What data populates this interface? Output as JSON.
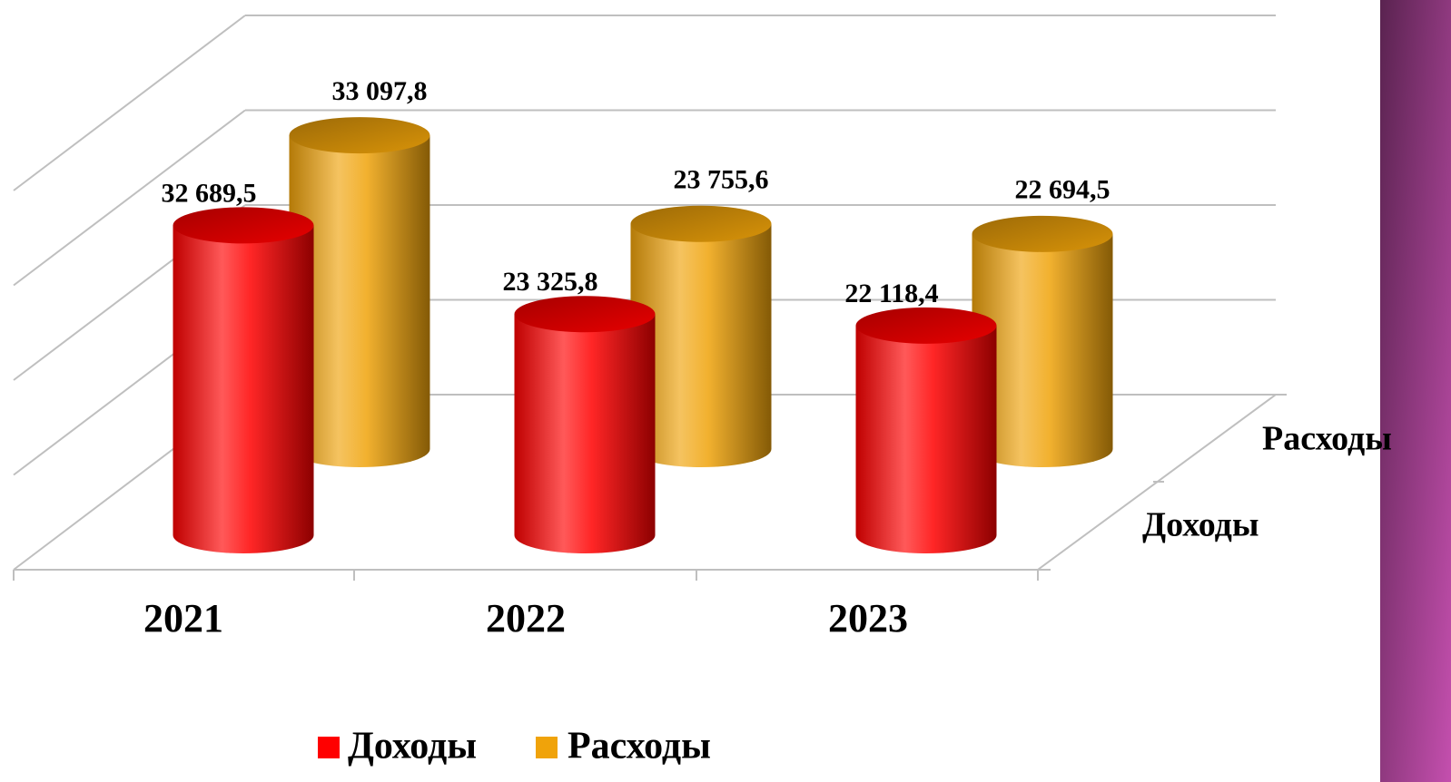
{
  "chart_data": {
    "type": "bar3d",
    "categories": [
      "2021",
      "2022",
      "2023"
    ],
    "series": [
      {
        "name": "Доходы",
        "color": "#ff0000",
        "values": [
          32689.5,
          23325.8,
          22118.4
        ],
        "value_labels": [
          "32 689,5",
          "23 325,8",
          "22 118,4"
        ]
      },
      {
        "name": "Расходы",
        "color": "#f0a30a",
        "values": [
          33097.8,
          23755.6,
          22694.5
        ],
        "value_labels": [
          "33 097,8",
          "23 755,6",
          "22 694,5"
        ]
      }
    ],
    "ylim": [
      0,
      40000
    ],
    "yticks": [
      0,
      10000,
      20000,
      30000,
      40000
    ],
    "grid": true,
    "legend": "bottom"
  }
}
